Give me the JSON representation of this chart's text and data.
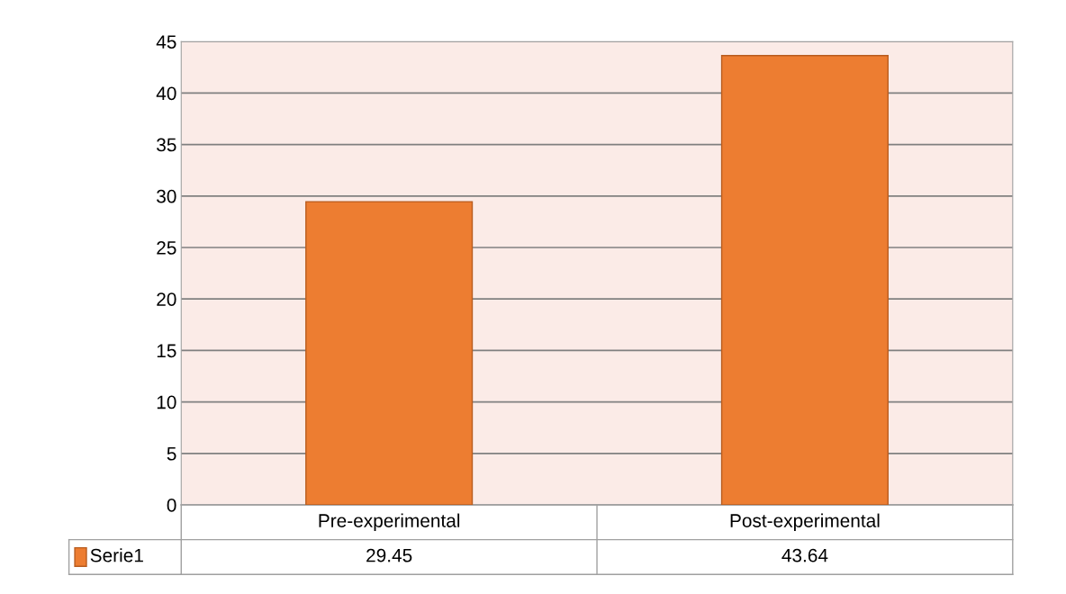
{
  "chart_data": {
    "type": "bar",
    "categories": [
      "Pre-experimental",
      "Post-experimental"
    ],
    "series": [
      {
        "name": "Serie1",
        "color": "#ed7d31",
        "values": [
          29.45,
          43.64
        ]
      }
    ],
    "ylim": [
      0,
      45
    ],
    "yticks": [
      0,
      5,
      10,
      15,
      20,
      25,
      30,
      35,
      40,
      45
    ],
    "grid": "y",
    "data_labels": true,
    "legend": "bottom"
  }
}
